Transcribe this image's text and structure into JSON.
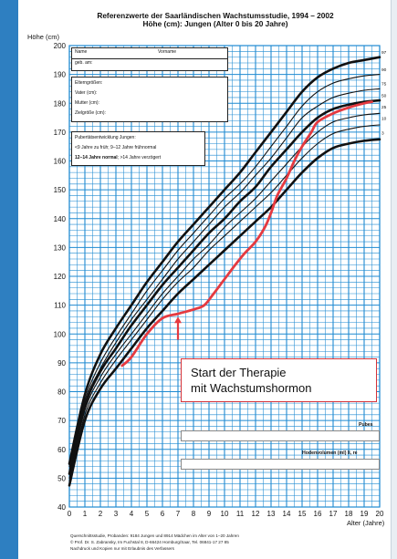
{
  "chart_data": {
    "type": "line",
    "title": "Referenzwerte der Saarländischen Wachstumsstudie, 1994 – 2002",
    "subtitle": "Höhe (cm): Jungen (Alter 0 bis 20 Jahre)",
    "ylabel": "Höhe (cm)",
    "xlabel": "Alter (Jahre)",
    "xlim": [
      0,
      20
    ],
    "ylim": [
      40,
      200
    ],
    "x_ticks": [
      0,
      1,
      2,
      3,
      4,
      5,
      6,
      7,
      8,
      9,
      10,
      11,
      12,
      13,
      14,
      15,
      16,
      17,
      18,
      19,
      20
    ],
    "y_ticks": [
      40,
      50,
      60,
      70,
      80,
      90,
      100,
      110,
      120,
      130,
      140,
      150,
      160,
      170,
      180,
      190,
      200
    ],
    "grid": true,
    "percentile_labels": [
      "97",
      "90",
      "75",
      "50",
      "25",
      "10",
      "3"
    ],
    "series": [
      {
        "name": "97",
        "points": [
          [
            0,
            55
          ],
          [
            1,
            79
          ],
          [
            2,
            93
          ],
          [
            3,
            102
          ],
          [
            4,
            110
          ],
          [
            5,
            118
          ],
          [
            6,
            125
          ],
          [
            7,
            132
          ],
          [
            8,
            138
          ],
          [
            9,
            144
          ],
          [
            10,
            150
          ],
          [
            11,
            156
          ],
          [
            12,
            163
          ],
          [
            13,
            170
          ],
          [
            14,
            177
          ],
          [
            15,
            184
          ],
          [
            16,
            189
          ],
          [
            17,
            192
          ],
          [
            18,
            194
          ],
          [
            19,
            195
          ],
          [
            20,
            196
          ]
        ]
      },
      {
        "name": "90",
        "points": [
          [
            0,
            54
          ],
          [
            1,
            77
          ],
          [
            2,
            90
          ],
          [
            3,
            99
          ],
          [
            4,
            107
          ],
          [
            5,
            115
          ],
          [
            6,
            122
          ],
          [
            7,
            129
          ],
          [
            8,
            135
          ],
          [
            9,
            141
          ],
          [
            10,
            147
          ],
          [
            11,
            152
          ],
          [
            12,
            158
          ],
          [
            13,
            165
          ],
          [
            14,
            172
          ],
          [
            15,
            179
          ],
          [
            16,
            184
          ],
          [
            17,
            187
          ],
          [
            18,
            188.5
          ],
          [
            19,
            189.5
          ],
          [
            20,
            190
          ]
        ]
      },
      {
        "name": "75",
        "points": [
          [
            0,
            52.5
          ],
          [
            1,
            76
          ],
          [
            2,
            88
          ],
          [
            3,
            97
          ],
          [
            4,
            105
          ],
          [
            5,
            112
          ],
          [
            6,
            119
          ],
          [
            7,
            126
          ],
          [
            8,
            132
          ],
          [
            9,
            138
          ],
          [
            10,
            144
          ],
          [
            11,
            149
          ],
          [
            12,
            155
          ],
          [
            13,
            161
          ],
          [
            14,
            168
          ],
          [
            15,
            175
          ],
          [
            16,
            179
          ],
          [
            17,
            182
          ],
          [
            18,
            183.5
          ],
          [
            19,
            184.5
          ],
          [
            20,
            185
          ]
        ]
      },
      {
        "name": "50",
        "points": [
          [
            0,
            51.5
          ],
          [
            1,
            75
          ],
          [
            2,
            87
          ],
          [
            3,
            95
          ],
          [
            4,
            103
          ],
          [
            5,
            110
          ],
          [
            6,
            117
          ],
          [
            7,
            123
          ],
          [
            8,
            129
          ],
          [
            9,
            135
          ],
          [
            10,
            140
          ],
          [
            11,
            146
          ],
          [
            12,
            151
          ],
          [
            13,
            158
          ],
          [
            14,
            164
          ],
          [
            15,
            170
          ],
          [
            16,
            175
          ],
          [
            17,
            178
          ],
          [
            18,
            179.5
          ],
          [
            19,
            180.5
          ],
          [
            20,
            181
          ]
        ]
      },
      {
        "name": "25",
        "points": [
          [
            0,
            50
          ],
          [
            1,
            73.5
          ],
          [
            2,
            85
          ],
          [
            3,
            93
          ],
          [
            4,
            100
          ],
          [
            5,
            107
          ],
          [
            6,
            114
          ],
          [
            7,
            120
          ],
          [
            8,
            126
          ],
          [
            9,
            131
          ],
          [
            10,
            137
          ],
          [
            11,
            142
          ],
          [
            12,
            147
          ],
          [
            13,
            153
          ],
          [
            14,
            159
          ],
          [
            15,
            165
          ],
          [
            16,
            170
          ],
          [
            17,
            173.5
          ],
          [
            18,
            175
          ],
          [
            19,
            176
          ],
          [
            20,
            176.5
          ]
        ]
      },
      {
        "name": "10",
        "points": [
          [
            0,
            49
          ],
          [
            1,
            72
          ],
          [
            2,
            83
          ],
          [
            3,
            91
          ],
          [
            4,
            98
          ],
          [
            5,
            105
          ],
          [
            6,
            112
          ],
          [
            7,
            118
          ],
          [
            8,
            123
          ],
          [
            9,
            129
          ],
          [
            10,
            134
          ],
          [
            11,
            139
          ],
          [
            12,
            144
          ],
          [
            13,
            149
          ],
          [
            14,
            155
          ],
          [
            15,
            161
          ],
          [
            16,
            166
          ],
          [
            17,
            169.5
          ],
          [
            18,
            171
          ],
          [
            19,
            172
          ],
          [
            20,
            172.5
          ]
        ]
      },
      {
        "name": "3",
        "points": [
          [
            0,
            47.5
          ],
          [
            1,
            70
          ],
          [
            2,
            81
          ],
          [
            3,
            88
          ],
          [
            4,
            95
          ],
          [
            5,
            102
          ],
          [
            6,
            108
          ],
          [
            7,
            114
          ],
          [
            8,
            119
          ],
          [
            9,
            124
          ],
          [
            10,
            129
          ],
          [
            11,
            134
          ],
          [
            12,
            139
          ],
          [
            13,
            144
          ],
          [
            14,
            150
          ],
          [
            15,
            156
          ],
          [
            16,
            161
          ],
          [
            17,
            164.5
          ],
          [
            18,
            166
          ],
          [
            19,
            167
          ],
          [
            20,
            167.5
          ]
        ]
      },
      {
        "name": "Patient",
        "color": "#e53a40",
        "points": [
          [
            3.4,
            89
          ],
          [
            4,
            92
          ],
          [
            5,
            100
          ],
          [
            6,
            105.5
          ],
          [
            7,
            107
          ],
          [
            8,
            108.5
          ],
          [
            8.7,
            110
          ],
          [
            9.3,
            114
          ],
          [
            10,
            119
          ],
          [
            10.7,
            124
          ],
          [
            11.3,
            128
          ],
          [
            12,
            132
          ],
          [
            12.6,
            137
          ],
          [
            13,
            142
          ],
          [
            13.4,
            148
          ],
          [
            14,
            154
          ],
          [
            14.5,
            160
          ],
          [
            15,
            165
          ],
          [
            15.6,
            170
          ],
          [
            16,
            173.5
          ],
          [
            17,
            176.5
          ],
          [
            18,
            178.5
          ],
          [
            19,
            180
          ],
          [
            19.5,
            180.5
          ]
        ]
      }
    ],
    "annotation": {
      "lines": [
        "Start der Therapie",
        "mit Wachstumshormon"
      ],
      "arrow_at": [
        7,
        98
      ]
    },
    "colors": {
      "grid": "#1f8ad1",
      "curves": "#111111",
      "patient": "#e53a40",
      "frame": "#2e7fc1"
    }
  },
  "info_box": {
    "name_label": "Name",
    "vorname_label": "Vorname",
    "geb_label": "geb. am:",
    "eltern_label": "Elterngrößen:",
    "vater_label": "Vater (cm):",
    "mutter_label": "Mutter (cm):",
    "ziel_label": "Zielgröße (cm):"
  },
  "puberty_box": {
    "line1": "Pubertätsentwicklung Jungen:",
    "line2": "<9 Jahre zu früh; 9–12 Jahre frühnormal",
    "line3_bold": "12–14 Jahre normal",
    "line3_rest": "; >14 Jahre verzögert"
  },
  "rows": {
    "pubes": "Pubes",
    "hoden": "Hodenvolumen (ml) li, re"
  },
  "footer": {
    "line1": "Querschnittsstudie, Probanden: 9184 Jungen und 8914 Mädchen im Alter von 1–20 Jahren",
    "line2": "© Prof. Dr. S. Zabransky, Im Fuchstal 8, D-66424 Homburg/Saar, Tel. 06841-17 27 85",
    "line3": "Nachdruck und Kopien nur mit Erlaubnis des Verfassers"
  }
}
